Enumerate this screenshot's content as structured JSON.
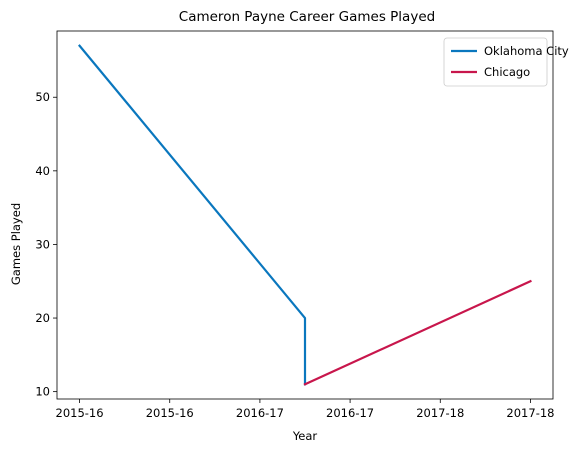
{
  "chart_data": {
    "type": "line",
    "title": "Cameron Payne Career Games Played",
    "xlabel": "Year",
    "ylabel": "Games Played",
    "x_tick_labels": [
      "2015-16",
      "2015-16",
      "2016-17",
      "2016-17",
      "2017-18",
      "2017-18"
    ],
    "y_ticks": [
      10,
      20,
      30,
      40,
      50
    ],
    "xlim": [
      -0.1,
      2.1
    ],
    "ylim": [
      9.0,
      59.0
    ],
    "grid": false,
    "legend_position": "top-right",
    "series": [
      {
        "name": "Oklahoma City",
        "color": "#0a77be",
        "points": [
          {
            "x": 0.0,
            "y": 57
          },
          {
            "x": 1.0,
            "y": 20
          },
          {
            "x": 1.0,
            "y": 11
          }
        ]
      },
      {
        "name": "Chicago",
        "color": "#c8164c",
        "points": [
          {
            "x": 1.0,
            "y": 11
          },
          {
            "x": 2.0,
            "y": 25
          }
        ]
      }
    ]
  }
}
